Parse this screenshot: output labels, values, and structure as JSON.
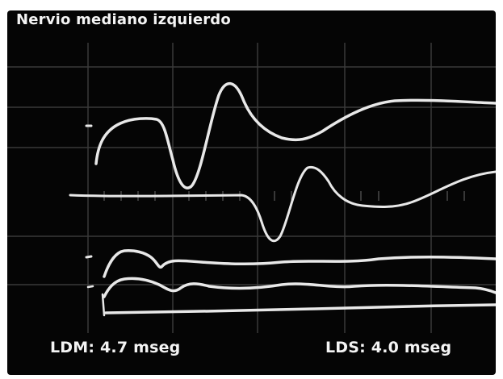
{
  "photo": {
    "title": "Nervio mediano izquierdo",
    "ldm_label": "LDM: 4.7 mseg",
    "lds_label": "LDS: 4.0 mseg",
    "trace_color": "#e8e8e8",
    "grid_color": "#3a3a3a",
    "screen_color": "#050505"
  }
}
